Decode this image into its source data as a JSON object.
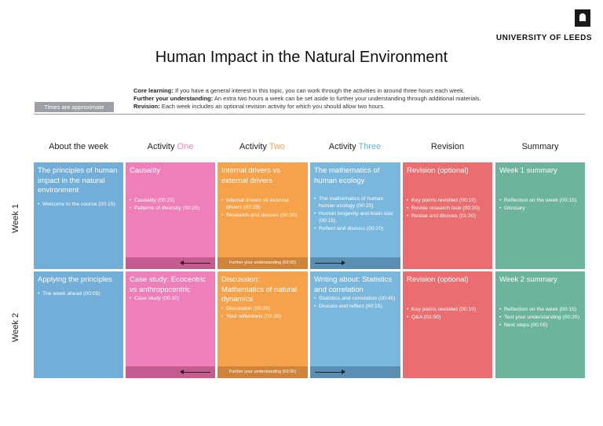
{
  "logo": {
    "name": "UNIVERSITY OF LEEDS"
  },
  "title": "Human Impact in the Natural Environment",
  "notes": {
    "approx": "Times are approximate",
    "core_label": "Core learning:",
    "core_text": "If you have a general interest in this topic, you can work through the activities in around three hours each week.",
    "further_label": "Further your understanding:",
    "further_text": "An extra two hours a week can be set aside to further your understanding through additional materials.",
    "revision_label": "Revision:",
    "revision_text": "Each week includes an optional revision activity for which you should allow two hours."
  },
  "columns": [
    {
      "pre": "About the week",
      "accent": "",
      "accent_color": "#222222"
    },
    {
      "pre": "Activity ",
      "accent": "One",
      "accent_color": "#ee7fb8"
    },
    {
      "pre": "Activity ",
      "accent": "Two",
      "accent_color": "#f5a24a"
    },
    {
      "pre": "Activity ",
      "accent": "Three",
      "accent_color": "#72aed8"
    },
    {
      "pre": "Revision",
      "accent": "",
      "accent_color": "#222222"
    },
    {
      "pre": "Summary",
      "accent": "",
      "accent_color": "#222222"
    }
  ],
  "rows": [
    "Week 1",
    "Week 2"
  ],
  "further_strip": "Further your understanding (02:00)",
  "week1": {
    "about": {
      "title": "The principles of human impact in the natural environment",
      "items": [
        "Welcome to the course (00:15)"
      ]
    },
    "one": {
      "title": "Causality",
      "items": [
        "Causality (00:25)",
        "Patterns of diversity (00:25)"
      ]
    },
    "two": {
      "title": "Internal drivers vs external drivers",
      "items": [
        "Internal drivers vs external drivers (00:25)",
        "Research and discuss (00:20)"
      ]
    },
    "three": {
      "title": "The mathematics of human ecology",
      "items": [
        "The mathematics of human human ecology (00:20)",
        "Human longevity and brain size (00:15)",
        "Reflect and discuss (00:20)"
      ]
    },
    "revision": {
      "title": "Revision (optional)",
      "items": [
        "Key points revisited (00:10)",
        "Revise research task (00:30)",
        "Revise and discuss (01:20)"
      ]
    },
    "summary": {
      "title": "Week 1 summary",
      "items": [
        "Reflection on the week (00:15)",
        "Glossary"
      ]
    }
  },
  "week2": {
    "about": {
      "title": "Applying the principles",
      "items": [
        "The week ahead (00:05)"
      ]
    },
    "one": {
      "title": "Case study: Ecocentric vs anthropocentric",
      "items": [
        "Case study (00:30)"
      ]
    },
    "two": {
      "title": "Discussion: Mathematics of natural dynamics",
      "items": [
        "Discussion (00:25)",
        "Your reflections (00:20)"
      ]
    },
    "three": {
      "title": "Writing about: Statistics and correlation",
      "items": [
        "Statistics and correlation (00:45)",
        "Discuss and reflect (00:15)"
      ]
    },
    "revision": {
      "title": "Revision (optional)",
      "items": [
        "Key points revisited (00:10)",
        "Q&A (01:50)"
      ]
    },
    "summary": {
      "title": "Week 2 summary",
      "items": [
        "Reflection on the week (00:15)",
        "Test your understanding (00:20)",
        "Next steps (00:05)"
      ]
    }
  }
}
